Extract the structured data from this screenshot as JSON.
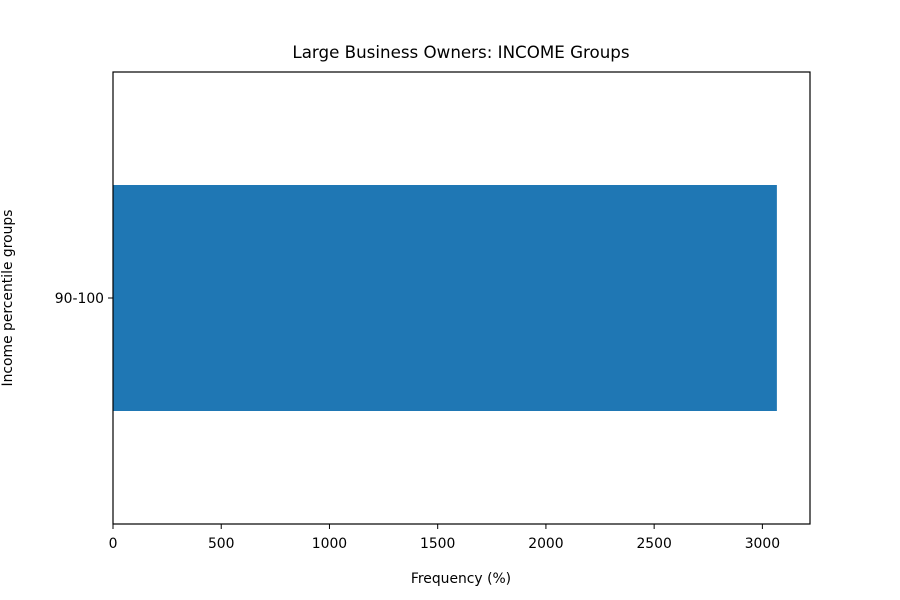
{
  "chart_data": {
    "type": "bar",
    "orientation": "horizontal",
    "title": "Large Business Owners: INCOME Groups",
    "xlabel": "Frequency (%)",
    "ylabel": "Income percentile groups",
    "categories": [
      "90-100"
    ],
    "values": [
      3067
    ],
    "xlim": [
      0,
      3220
    ],
    "xticks": [
      0,
      500,
      1000,
      1500,
      2000,
      2500,
      3000
    ],
    "grid": false,
    "legend": "none",
    "bar_color": "#1f77b4"
  }
}
